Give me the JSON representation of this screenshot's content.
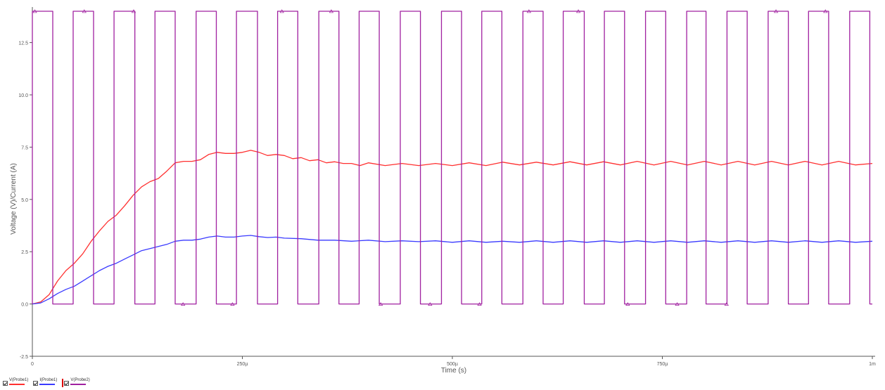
{
  "colors": {
    "v_probe1": "#ff3030",
    "i_probe1": "#3a3aff",
    "v_probe2": "#a020a0",
    "axis": "#555555",
    "tick_text": "#555555",
    "cursor": "#e00000"
  },
  "legend": {
    "v_probe1": "V(Probe1)",
    "i_probe1": "I(Probe1)",
    "v_probe2": "V(Probe2)"
  },
  "chart_data": {
    "type": "line",
    "title": "",
    "xlabel": "Time (s)",
    "ylabel": "Voltage (V)/Current (A)",
    "xlim": [
      0,
      0.001
    ],
    "ylim": [
      -2.5,
      14.2
    ],
    "x_ticks": [
      {
        "value": 0,
        "label": "0"
      },
      {
        "value": 0.00025,
        "label": "250µ"
      },
      {
        "value": 0.0005,
        "label": "500µ"
      },
      {
        "value": 0.00075,
        "label": "750µ"
      },
      {
        "value": 0.001,
        "label": "1m"
      }
    ],
    "y_ticks": [
      {
        "value": -2.5,
        "label": "-2.5"
      },
      {
        "value": 0,
        "label": "0.0"
      },
      {
        "value": 2.5,
        "label": "2.5"
      },
      {
        "value": 5,
        "label": "5.0"
      },
      {
        "value": 7.5,
        "label": "7.5"
      },
      {
        "value": 10,
        "label": "10.0"
      },
      {
        "value": 12.5,
        "label": "12.5"
      }
    ],
    "grid": false,
    "legend_position": "bottom-left",
    "series": [
      {
        "name": "V(Probe1)",
        "color": "#ff3030",
        "x": [
          0,
          1e-05,
          2e-05,
          3e-05,
          4e-05,
          5e-05,
          6e-05,
          7e-05,
          8e-05,
          9e-05,
          0.0001,
          0.00011,
          0.00012,
          0.00013,
          0.00014,
          0.00015,
          0.00016,
          0.00017,
          0.00018,
          0.00019,
          0.0002,
          0.00021,
          0.00022,
          0.00023,
          0.00024,
          0.00025,
          0.00026,
          0.00027,
          0.00028,
          0.00029,
          0.0003,
          0.00031,
          0.00032,
          0.00033,
          0.00034,
          0.00035,
          0.00036,
          0.00037,
          0.00038,
          0.00039,
          0.0004,
          0.00042,
          0.00044,
          0.00046,
          0.00048,
          0.0005,
          0.00052,
          0.00054,
          0.00056,
          0.00058,
          0.0006,
          0.00062,
          0.00064,
          0.00066,
          0.00068,
          0.0007,
          0.00072,
          0.00074,
          0.00076,
          0.00078,
          0.0008,
          0.00082,
          0.00084,
          0.00086,
          0.00088,
          0.0009,
          0.00092,
          0.00094,
          0.00096,
          0.00098,
          0.001
        ],
        "y": [
          0,
          0.1,
          0.45,
          1.1,
          1.6,
          1.95,
          2.4,
          3.0,
          3.5,
          3.95,
          4.25,
          4.7,
          5.2,
          5.6,
          5.85,
          6.0,
          6.35,
          6.75,
          6.82,
          6.82,
          6.9,
          7.15,
          7.25,
          7.2,
          7.2,
          7.25,
          7.35,
          7.25,
          7.1,
          7.15,
          7.1,
          6.95,
          7.0,
          6.85,
          6.9,
          6.75,
          6.8,
          6.72,
          6.72,
          6.62,
          6.75,
          6.62,
          6.72,
          6.62,
          6.72,
          6.62,
          6.75,
          6.62,
          6.78,
          6.65,
          6.78,
          6.65,
          6.8,
          6.65,
          6.8,
          6.65,
          6.82,
          6.65,
          6.82,
          6.65,
          6.82,
          6.65,
          6.82,
          6.65,
          6.82,
          6.65,
          6.82,
          6.65,
          6.82,
          6.65,
          6.72
        ]
      },
      {
        "name": "I(Probe1)",
        "color": "#3a3aff",
        "x": [
          0,
          1e-05,
          2e-05,
          3e-05,
          4e-05,
          5e-05,
          6e-05,
          7e-05,
          8e-05,
          9e-05,
          0.0001,
          0.00011,
          0.00012,
          0.00013,
          0.00014,
          0.00015,
          0.00016,
          0.00017,
          0.00018,
          0.00019,
          0.0002,
          0.00021,
          0.00022,
          0.00023,
          0.00024,
          0.00025,
          0.00026,
          0.00027,
          0.00028,
          0.00029,
          0.0003,
          0.00032,
          0.00034,
          0.00036,
          0.00038,
          0.0004,
          0.00042,
          0.00044,
          0.00046,
          0.00048,
          0.0005,
          0.00052,
          0.00054,
          0.00056,
          0.00058,
          0.0006,
          0.00062,
          0.00064,
          0.00066,
          0.00068,
          0.0007,
          0.00072,
          0.00074,
          0.00076,
          0.00078,
          0.0008,
          0.00082,
          0.00084,
          0.00086,
          0.00088,
          0.0009,
          0.00092,
          0.00094,
          0.00096,
          0.00098,
          0.001
        ],
        "y": [
          0,
          0.05,
          0.25,
          0.5,
          0.7,
          0.85,
          1.1,
          1.35,
          1.6,
          1.8,
          1.95,
          2.15,
          2.35,
          2.55,
          2.65,
          2.75,
          2.85,
          3.0,
          3.05,
          3.05,
          3.1,
          3.2,
          3.25,
          3.2,
          3.2,
          3.25,
          3.28,
          3.22,
          3.18,
          3.2,
          3.15,
          3.12,
          3.05,
          3.05,
          3.0,
          3.05,
          2.98,
          3.02,
          2.98,
          3.02,
          2.95,
          3.02,
          2.95,
          3.0,
          2.95,
          3.02,
          2.95,
          3.02,
          2.95,
          3.02,
          2.95,
          3.02,
          2.95,
          3.02,
          2.95,
          3.02,
          2.95,
          3.02,
          2.95,
          3.02,
          2.95,
          3.02,
          2.95,
          3.02,
          2.95,
          3.0
        ]
      },
      {
        "name": "V(Probe2)",
        "color": "#a020a0",
        "type": "square",
        "high": 14,
        "low": 0,
        "rising_edges": [
          0,
          4.86e-05,
          9.72e-05,
          0.000146,
          0.000195,
          0.000243,
          0.000292,
          0.000341,
          0.000389,
          0.000438,
          0.000487,
          0.000535,
          0.000584,
          0.000632,
          0.000681,
          0.00073,
          0.000779,
          0.000827,
          0.000876,
          0.000924,
          0.000973
        ],
        "falling_edges": [
          2.43e-05,
          7.29e-05,
          0.000122,
          0.00017,
          0.000219,
          0.000268,
          0.000316,
          0.000365,
          0.000413,
          0.000462,
          0.000511,
          0.000559,
          0.000608,
          0.000657,
          0.000705,
          0.000754,
          0.000802,
          0.000851,
          0.0009,
          0.000948,
          0.000997
        ]
      }
    ]
  }
}
